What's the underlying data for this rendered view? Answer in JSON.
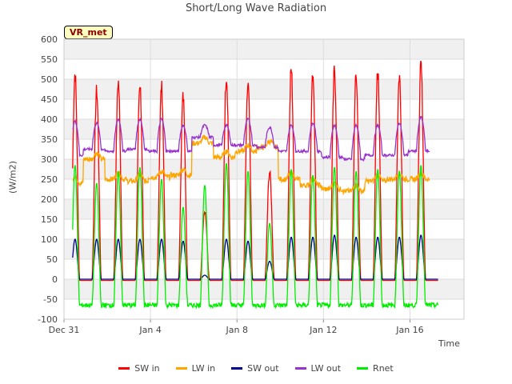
{
  "chart_data": {
    "type": "line",
    "title": "Short/Long Wave Radiation",
    "ylabel": "(W/m2)",
    "xlabel": "Time",
    "site_badge": "VR_met",
    "ylim": [
      -100,
      600
    ],
    "yticks": [
      -100,
      -50,
      0,
      50,
      100,
      150,
      200,
      250,
      300,
      350,
      400,
      450,
      500,
      550,
      600
    ],
    "xlim_days": [
      0,
      18.5
    ],
    "xticks": [
      {
        "label": "Dec 31",
        "day": 0
      },
      {
        "label": "Jan 4",
        "day": 4
      },
      {
        "label": "Jan 8",
        "day": 8
      },
      {
        "label": "Jan 12",
        "day": 12
      },
      {
        "label": "Jan 16",
        "day": 16
      }
    ],
    "grid": true,
    "legend_position": "bottom",
    "day_start": 0.4,
    "day_end": 17.4,
    "series": [
      {
        "name": "SW in",
        "color": "#ff0000",
        "daily_peaks": [
          535,
          490,
          515,
          510,
          500,
          475,
          180,
          530,
          505,
          280,
          545,
          535,
          545,
          530,
          540,
          530,
          555
        ]
      },
      {
        "name": "LW in",
        "color": "#ffa500",
        "daily_levels": [
          240,
          300,
          250,
          245,
          255,
          260,
          340,
          305,
          320,
          330,
          250,
          235,
          225,
          220,
          245,
          250,
          250
        ]
      },
      {
        "name": "SW out",
        "color": "#00008b",
        "daily_peaks": [
          100,
          100,
          100,
          100,
          100,
          95,
          10,
          100,
          95,
          45,
          105,
          105,
          110,
          105,
          105,
          105,
          110
        ]
      },
      {
        "name": "LW out",
        "color": "#9932cc",
        "daily_levels": [
          310,
          325,
          320,
          325,
          320,
          320,
          355,
          335,
          335,
          330,
          320,
          320,
          305,
          300,
          310,
          310,
          320
        ],
        "daily_peaks": [
          395,
          390,
          400,
          400,
          400,
          385,
          385,
          385,
          400,
          380,
          385,
          390,
          385,
          385,
          385,
          390,
          405
        ]
      },
      {
        "name": "Rnet",
        "color": "#00ee00",
        "daily_peaks": [
          285,
          240,
          270,
          280,
          250,
          180,
          235,
          290,
          270,
          140,
          275,
          260,
          280,
          270,
          275,
          270,
          285
        ],
        "night_level": -65
      }
    ]
  }
}
